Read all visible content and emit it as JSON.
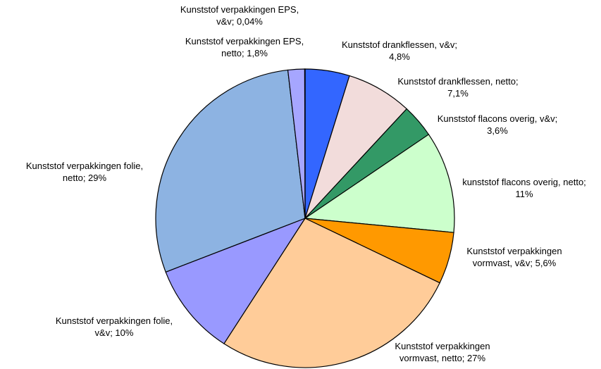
{
  "chart_data": {
    "type": "pie",
    "values": [
      4.8,
      7.1,
      3.6,
      11,
      5.6,
      27,
      10,
      29,
      1.8,
      0.04
    ],
    "value_labels": [
      "Kunststof drankflessen, v&v;\n4,8%",
      "Kunststof drankflessen, netto;\n7,1%",
      "Kunststof flacons overig, v&v;\n3,6%",
      "kunststof flacons overig, netto;\n11%",
      "Kunststof verpakkingen\nvormvast, v&v; 5,6%",
      "Kunststof verpakkingen\nvormvast, netto; 27%",
      "Kunststof verpakkingen folie,\nv&v; 10%",
      "Kunststof verpakkingen folie,\nnetto; 29%",
      "Kunststof verpakkingen EPS,\nnetto; 1,8%",
      "Kunststof verpakkingen EPS,\nv&v; 0,04%"
    ],
    "colors": [
      "#3366ff",
      "#f2dcdb",
      "#339966",
      "#ccffcc",
      "#ff9900",
      "#ffcc99",
      "#9999ff",
      "#8db3e2",
      "#a6a6ff",
      "#ffffff"
    ]
  }
}
